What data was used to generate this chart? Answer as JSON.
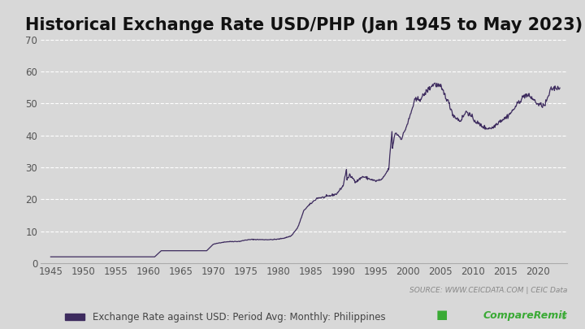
{
  "title": "Historical Exchange Rate USD/PHP (Jan 1945 to May 2023)",
  "legend_label": "Exchange Rate against USD: Period Avg: Monthly: Philippines",
  "source_text": "SOURCE: WWW.CEICDATA.COM | CEIC Data",
  "line_color": "#3d2b5e",
  "background_color": "#d8d8d8",
  "plot_bg_color": "#d8d8d8",
  "ylim": [
    0,
    70
  ],
  "yticks": [
    0,
    10,
    20,
    30,
    40,
    50,
    60,
    70
  ],
  "xticks": [
    1945,
    1950,
    1955,
    1960,
    1965,
    1970,
    1975,
    1980,
    1985,
    1990,
    1995,
    2000,
    2005,
    2010,
    2015,
    2020
  ],
  "xlim": [
    1943.5,
    2024.5
  ],
  "title_fontsize": 15,
  "legend_fontsize": 8.5,
  "tick_fontsize": 8.5,
  "source_fontsize": 6.5,
  "line_width": 0.9,
  "grid_color": "#ffffff",
  "data_years": [
    1945,
    1946,
    1947,
    1948,
    1949,
    1950,
    1951,
    1952,
    1953,
    1954,
    1955,
    1956,
    1957,
    1958,
    1959,
    1960,
    1961,
    1962,
    1963,
    1964,
    1965,
    1966,
    1967,
    1968,
    1969,
    1970,
    1971,
    1972,
    1973,
    1974,
    1975,
    1976,
    1977,
    1978,
    1979,
    1980,
    1981,
    1982,
    1983,
    1984,
    1985,
    1986,
    1987,
    1988,
    1989,
    1990,
    1991,
    1992,
    1993,
    1994,
    1995,
    1996,
    1997,
    1998,
    1999,
    2000,
    2001,
    2002,
    2003,
    2004,
    2005,
    2006,
    2007,
    2008,
    2009,
    2010,
    2011,
    2012,
    2013,
    2014,
    2015,
    2016,
    2017,
    2018,
    2019,
    2020,
    2021,
    2022,
    2023
  ],
  "data_values": [
    2.0,
    2.0,
    2.0,
    2.0,
    2.0,
    2.0,
    2.0,
    2.0,
    2.0,
    2.0,
    2.0,
    2.0,
    2.0,
    2.0,
    2.0,
    2.0,
    2.0,
    3.9,
    3.9,
    3.9,
    3.9,
    3.9,
    3.9,
    3.9,
    3.9,
    5.9,
    6.4,
    6.7,
    6.8,
    6.8,
    7.25,
    7.44,
    7.4,
    7.37,
    7.38,
    7.51,
    7.9,
    8.54,
    11.11,
    16.7,
    18.6,
    20.4,
    20.6,
    21.1,
    21.7,
    24.3,
    27.5,
    25.5,
    27.1,
    26.4,
    25.7,
    26.2,
    29.5,
    40.9,
    39.0,
    44.2,
    50.9,
    51.6,
    54.2,
    56.2,
    55.1,
    51.3,
    46.1,
    44.5,
    47.6,
    45.1,
    43.3,
    42.2,
    42.4,
    44.4,
    45.5,
    47.5,
    50.4,
    52.7,
    51.8,
    49.6,
    49.3,
    54.5,
    55.0
  ]
}
